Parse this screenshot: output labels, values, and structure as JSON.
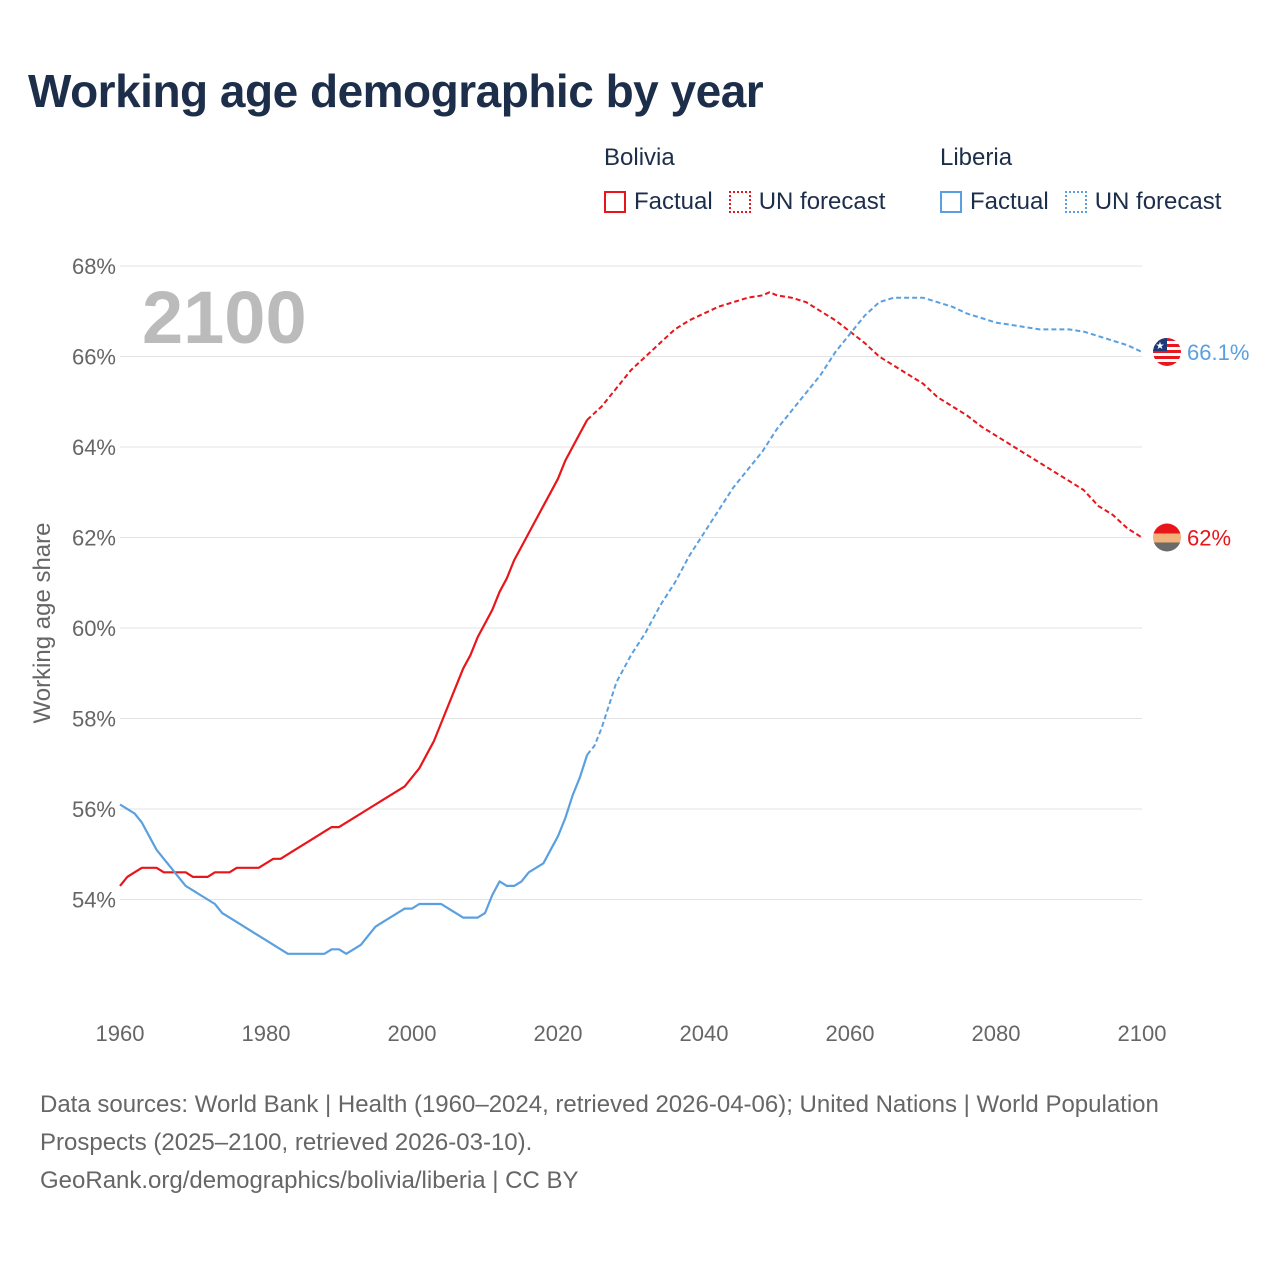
{
  "title": "Working age demographic by year",
  "year_label": "2100",
  "legend": {
    "groups": [
      {
        "name": "Bolivia",
        "color": "#e8151b",
        "items": [
          "Factual",
          "UN forecast"
        ]
      },
      {
        "name": "Liberia",
        "color": "#5aa0e0",
        "items": [
          "Factual",
          "UN forecast"
        ]
      }
    ]
  },
  "footer": {
    "sources": "Data sources: World Bank | Health (1960–2024, retrieved 2026-04-06); United Nations | World Population Prospects (2025–2100, retrieved 2026-03-10).",
    "credit": "GeoRank.org/demographics/bolivia/liberia | CC BY"
  },
  "chart_data": {
    "type": "line",
    "title": "Working age demographic by year",
    "xlabel": "",
    "ylabel": "Working age share",
    "xlim": [
      1960,
      2100
    ],
    "ylim": [
      52,
      68
    ],
    "x_ticks": [
      1960,
      1980,
      2000,
      2020,
      2040,
      2060,
      2080,
      2100
    ],
    "y_ticks": [
      54,
      56,
      58,
      60,
      62,
      64,
      66,
      68
    ],
    "y_tick_labels": [
      "54%",
      "56%",
      "58%",
      "60%",
      "62%",
      "64%",
      "66%",
      "68%"
    ],
    "forecast_start": 2024,
    "series": [
      {
        "name": "Bolivia",
        "color": "#e8151b",
        "end_label": "62%",
        "points": [
          [
            1960,
            54.3
          ],
          [
            1961,
            54.5
          ],
          [
            1962,
            54.6
          ],
          [
            1963,
            54.7
          ],
          [
            1964,
            54.7
          ],
          [
            1965,
            54.7
          ],
          [
            1966,
            54.6
          ],
          [
            1967,
            54.6
          ],
          [
            1968,
            54.6
          ],
          [
            1969,
            54.6
          ],
          [
            1970,
            54.5
          ],
          [
            1971,
            54.5
          ],
          [
            1972,
            54.5
          ],
          [
            1973,
            54.6
          ],
          [
            1974,
            54.6
          ],
          [
            1975,
            54.6
          ],
          [
            1976,
            54.7
          ],
          [
            1977,
            54.7
          ],
          [
            1978,
            54.7
          ],
          [
            1979,
            54.7
          ],
          [
            1980,
            54.8
          ],
          [
            1981,
            54.9
          ],
          [
            1982,
            54.9
          ],
          [
            1984,
            55.1
          ],
          [
            1986,
            55.3
          ],
          [
            1988,
            55.5
          ],
          [
            1989,
            55.6
          ],
          [
            1990,
            55.6
          ],
          [
            1992,
            55.8
          ],
          [
            1994,
            56.0
          ],
          [
            1996,
            56.2
          ],
          [
            1998,
            56.4
          ],
          [
            1999,
            56.5
          ],
          [
            2000,
            56.7
          ],
          [
            2001,
            56.9
          ],
          [
            2002,
            57.2
          ],
          [
            2003,
            57.5
          ],
          [
            2004,
            57.9
          ],
          [
            2005,
            58.3
          ],
          [
            2006,
            58.7
          ],
          [
            2007,
            59.1
          ],
          [
            2008,
            59.4
          ],
          [
            2009,
            59.8
          ],
          [
            2010,
            60.1
          ],
          [
            2011,
            60.4
          ],
          [
            2012,
            60.8
          ],
          [
            2013,
            61.1
          ],
          [
            2014,
            61.5
          ],
          [
            2015,
            61.8
          ],
          [
            2016,
            62.1
          ],
          [
            2017,
            62.4
          ],
          [
            2018,
            62.7
          ],
          [
            2019,
            63.0
          ],
          [
            2020,
            63.3
          ],
          [
            2021,
            63.7
          ],
          [
            2022,
            64.0
          ],
          [
            2023,
            64.3
          ],
          [
            2024,
            64.6
          ],
          [
            2026,
            64.9
          ],
          [
            2028,
            65.3
          ],
          [
            2030,
            65.7
          ],
          [
            2032,
            66.0
          ],
          [
            2034,
            66.3
          ],
          [
            2036,
            66.6
          ],
          [
            2038,
            66.8
          ],
          [
            2040,
            66.95
          ],
          [
            2042,
            67.1
          ],
          [
            2044,
            67.2
          ],
          [
            2046,
            67.3
          ],
          [
            2048,
            67.35
          ],
          [
            2049,
            67.42
          ],
          [
            2050,
            67.35
          ],
          [
            2052,
            67.3
          ],
          [
            2054,
            67.2
          ],
          [
            2056,
            67.0
          ],
          [
            2058,
            66.8
          ],
          [
            2060,
            66.55
          ],
          [
            2062,
            66.3
          ],
          [
            2064,
            66.0
          ],
          [
            2066,
            65.8
          ],
          [
            2068,
            65.6
          ],
          [
            2070,
            65.4
          ],
          [
            2072,
            65.1
          ],
          [
            2074,
            64.9
          ],
          [
            2076,
            64.7
          ],
          [
            2078,
            64.45
          ],
          [
            2080,
            64.25
          ],
          [
            2082,
            64.05
          ],
          [
            2084,
            63.85
          ],
          [
            2086,
            63.65
          ],
          [
            2088,
            63.45
          ],
          [
            2090,
            63.25
          ],
          [
            2092,
            63.05
          ],
          [
            2094,
            62.7
          ],
          [
            2096,
            62.5
          ],
          [
            2098,
            62.2
          ],
          [
            2100,
            62.0
          ]
        ]
      },
      {
        "name": "Liberia",
        "color": "#5aa0e0",
        "end_label": "66.1%",
        "points": [
          [
            1960,
            56.1
          ],
          [
            1962,
            55.9
          ],
          [
            1963,
            55.7
          ],
          [
            1964,
            55.4
          ],
          [
            1965,
            55.1
          ],
          [
            1966,
            54.9
          ],
          [
            1967,
            54.7
          ],
          [
            1968,
            54.5
          ],
          [
            1969,
            54.3
          ],
          [
            1970,
            54.2
          ],
          [
            1971,
            54.1
          ],
          [
            1972,
            54.0
          ],
          [
            1973,
            53.9
          ],
          [
            1974,
            53.7
          ],
          [
            1976,
            53.5
          ],
          [
            1978,
            53.3
          ],
          [
            1980,
            53.1
          ],
          [
            1982,
            52.9
          ],
          [
            1983,
            52.8
          ],
          [
            1985,
            52.8
          ],
          [
            1987,
            52.8
          ],
          [
            1988,
            52.8
          ],
          [
            1989,
            52.9
          ],
          [
            1990,
            52.9
          ],
          [
            1991,
            52.8
          ],
          [
            1993,
            53.0
          ],
          [
            1994,
            53.2
          ],
          [
            1995,
            53.4
          ],
          [
            1996,
            53.5
          ],
          [
            1997,
            53.6
          ],
          [
            1998,
            53.7
          ],
          [
            1999,
            53.8
          ],
          [
            2000,
            53.8
          ],
          [
            2001,
            53.9
          ],
          [
            2002,
            53.9
          ],
          [
            2003,
            53.9
          ],
          [
            2004,
            53.9
          ],
          [
            2005,
            53.8
          ],
          [
            2006,
            53.7
          ],
          [
            2007,
            53.6
          ],
          [
            2008,
            53.6
          ],
          [
            2009,
            53.6
          ],
          [
            2010,
            53.7
          ],
          [
            2011,
            54.1
          ],
          [
            2012,
            54.4
          ],
          [
            2013,
            54.3
          ],
          [
            2014,
            54.3
          ],
          [
            2015,
            54.4
          ],
          [
            2016,
            54.6
          ],
          [
            2017,
            54.7
          ],
          [
            2018,
            54.8
          ],
          [
            2019,
            55.1
          ],
          [
            2020,
            55.4
          ],
          [
            2021,
            55.8
          ],
          [
            2022,
            56.3
          ],
          [
            2023,
            56.7
          ],
          [
            2024,
            57.2
          ],
          [
            2025,
            57.4
          ],
          [
            2026,
            57.8
          ],
          [
            2027,
            58.3
          ],
          [
            2028,
            58.8
          ],
          [
            2030,
            59.4
          ],
          [
            2032,
            59.9
          ],
          [
            2034,
            60.5
          ],
          [
            2036,
            61.0
          ],
          [
            2038,
            61.6
          ],
          [
            2040,
            62.1
          ],
          [
            2042,
            62.6
          ],
          [
            2044,
            63.1
          ],
          [
            2046,
            63.5
          ],
          [
            2048,
            63.9
          ],
          [
            2050,
            64.4
          ],
          [
            2052,
            64.8
          ],
          [
            2054,
            65.2
          ],
          [
            2056,
            65.6
          ],
          [
            2058,
            66.1
          ],
          [
            2060,
            66.5
          ],
          [
            2062,
            66.9
          ],
          [
            2064,
            67.2
          ],
          [
            2066,
            67.3
          ],
          [
            2068,
            67.3
          ],
          [
            2070,
            67.3
          ],
          [
            2072,
            67.2
          ],
          [
            2074,
            67.1
          ],
          [
            2076,
            66.95
          ],
          [
            2078,
            66.85
          ],
          [
            2080,
            66.75
          ],
          [
            2082,
            66.7
          ],
          [
            2084,
            66.65
          ],
          [
            2086,
            66.6
          ],
          [
            2088,
            66.6
          ],
          [
            2090,
            66.6
          ],
          [
            2092,
            66.55
          ],
          [
            2094,
            66.45
          ],
          [
            2096,
            66.35
          ],
          [
            2098,
            66.25
          ],
          [
            2100,
            66.1
          ]
        ]
      }
    ]
  }
}
